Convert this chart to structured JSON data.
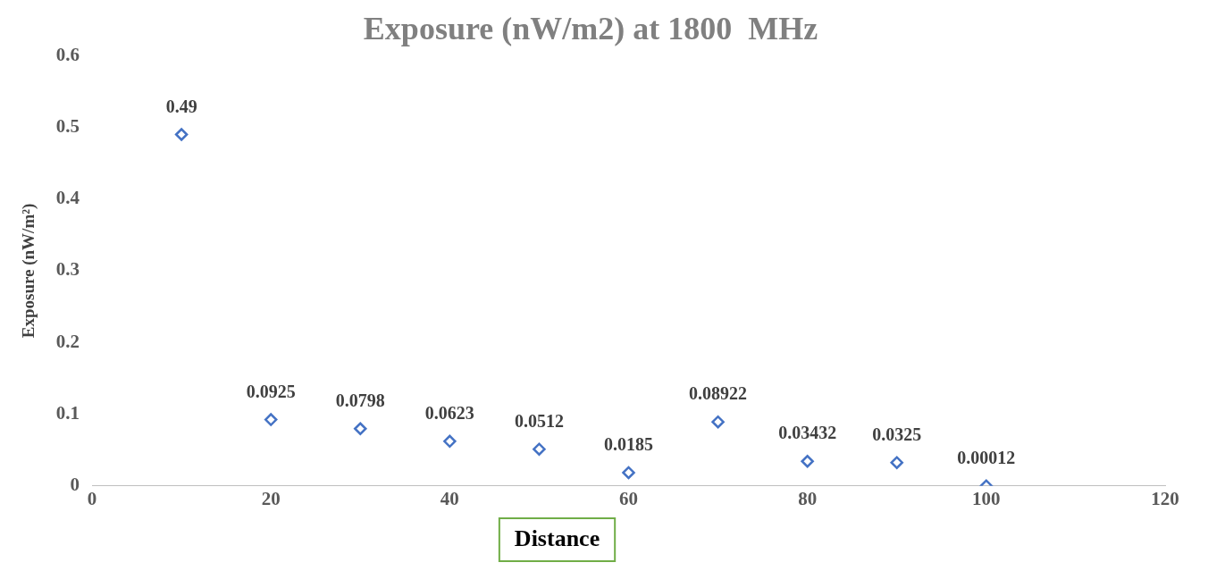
{
  "chart_data": {
    "type": "scatter",
    "title": "Exposure (nW/m2) at 1800  MHz",
    "xlabel": "Distance",
    "ylabel": "Exposure (nW/m²)",
    "x": [
      10,
      20,
      30,
      40,
      50,
      60,
      70,
      80,
      90,
      100
    ],
    "series": [
      {
        "color": "#4472c4",
        "values": [
          0.49,
          0.0925,
          0.0798,
          0.0623,
          0.0512,
          0.0185,
          0.08922,
          0.03432,
          0.0325,
          0.00012
        ]
      }
    ],
    "xlim": [
      0,
      120
    ],
    "xticks": [
      0,
      20,
      40,
      60,
      80,
      100,
      120
    ],
    "ylim": [
      0,
      0.6
    ],
    "yticks": [
      0,
      0.1,
      0.2,
      0.3,
      0.4,
      0.5,
      0.6
    ],
    "marker": "diamond",
    "data_labels": true,
    "grid": false,
    "legend": false
  }
}
